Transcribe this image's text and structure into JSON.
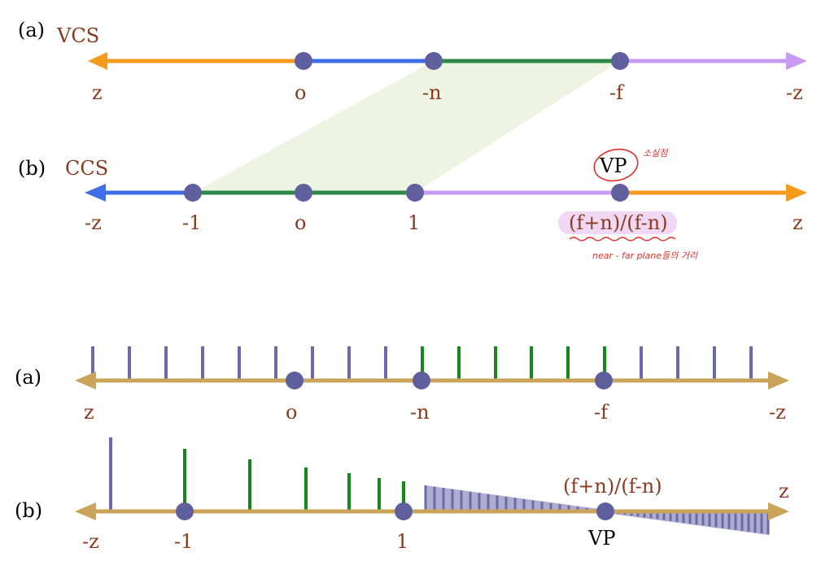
{
  "colors": {
    "orange": "#f59a1c",
    "blue": "#3f6ee8",
    "green": "#2f8a4a",
    "lavender": "#c79bf2",
    "dot": "#5f5f9e",
    "label": "#8a3a1e",
    "fill_band": "#eef3e2",
    "tan_axis": "#c9a45a",
    "tick_purple": "#6b6aa8",
    "tick_green": "#138a1a",
    "annotation_red": "#e0302a",
    "highlight": "#f0d8f5"
  },
  "top": {
    "a": {
      "tag": "(a)",
      "name": "VCS",
      "labels": [
        "z",
        "o",
        "-n",
        "-f",
        "-z"
      ]
    },
    "b": {
      "tag": "(b)",
      "name": "CCS",
      "labels": [
        "-z",
        "-1",
        "o",
        "1",
        "(f+n)/(f-n)",
        "z"
      ],
      "vp": "VP",
      "note_vanishing": "소실점",
      "note_distance": "near - far plane들의 거리"
    }
  },
  "bottom": {
    "a": {
      "tag": "(a)",
      "labels": [
        "z",
        "o",
        "-n",
        "-f",
        "-z"
      ]
    },
    "b": {
      "tag": "(b)",
      "labels": [
        "-z",
        "-1",
        "1",
        "(f+n)/(f-n)",
        "z"
      ],
      "vp": "VP"
    }
  }
}
